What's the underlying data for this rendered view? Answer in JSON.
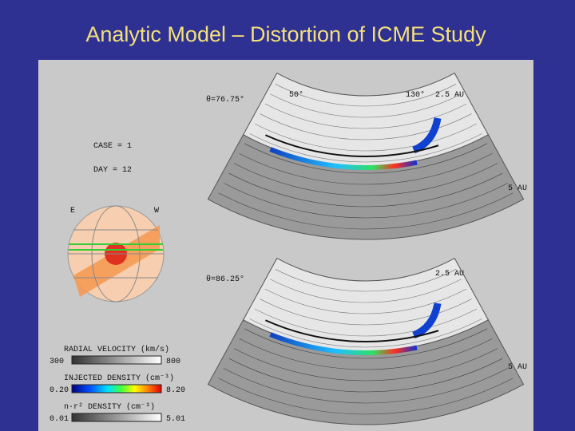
{
  "header": {
    "title": "Analytic Model – Distortion of ICME Study"
  },
  "figure": {
    "top_panel": {
      "angle": "θ=76.75°",
      "left_lat": "50°",
      "right_lat": "130°",
      "inner_radius": "2.5 AU",
      "outer_radius": "5 AU"
    },
    "bottom_panel": {
      "angle": "θ=86.25°",
      "inner_radius": "2.5 AU",
      "outer_radius": "5 AU"
    },
    "case": "CASE = 1",
    "day": "DAY = 12",
    "globe": {
      "east": "E",
      "west": "W"
    },
    "colorbars": [
      {
        "label": "RADIAL VELOCITY (km/s)",
        "min": "300",
        "max": "800"
      },
      {
        "label": "INJECTED DENSITY (cm⁻³)",
        "min": "0.20",
        "max": "8.20"
      },
      {
        "label": "n·r² DENSITY (cm⁻³)",
        "min": "0.01",
        "max": "5.01"
      }
    ]
  }
}
